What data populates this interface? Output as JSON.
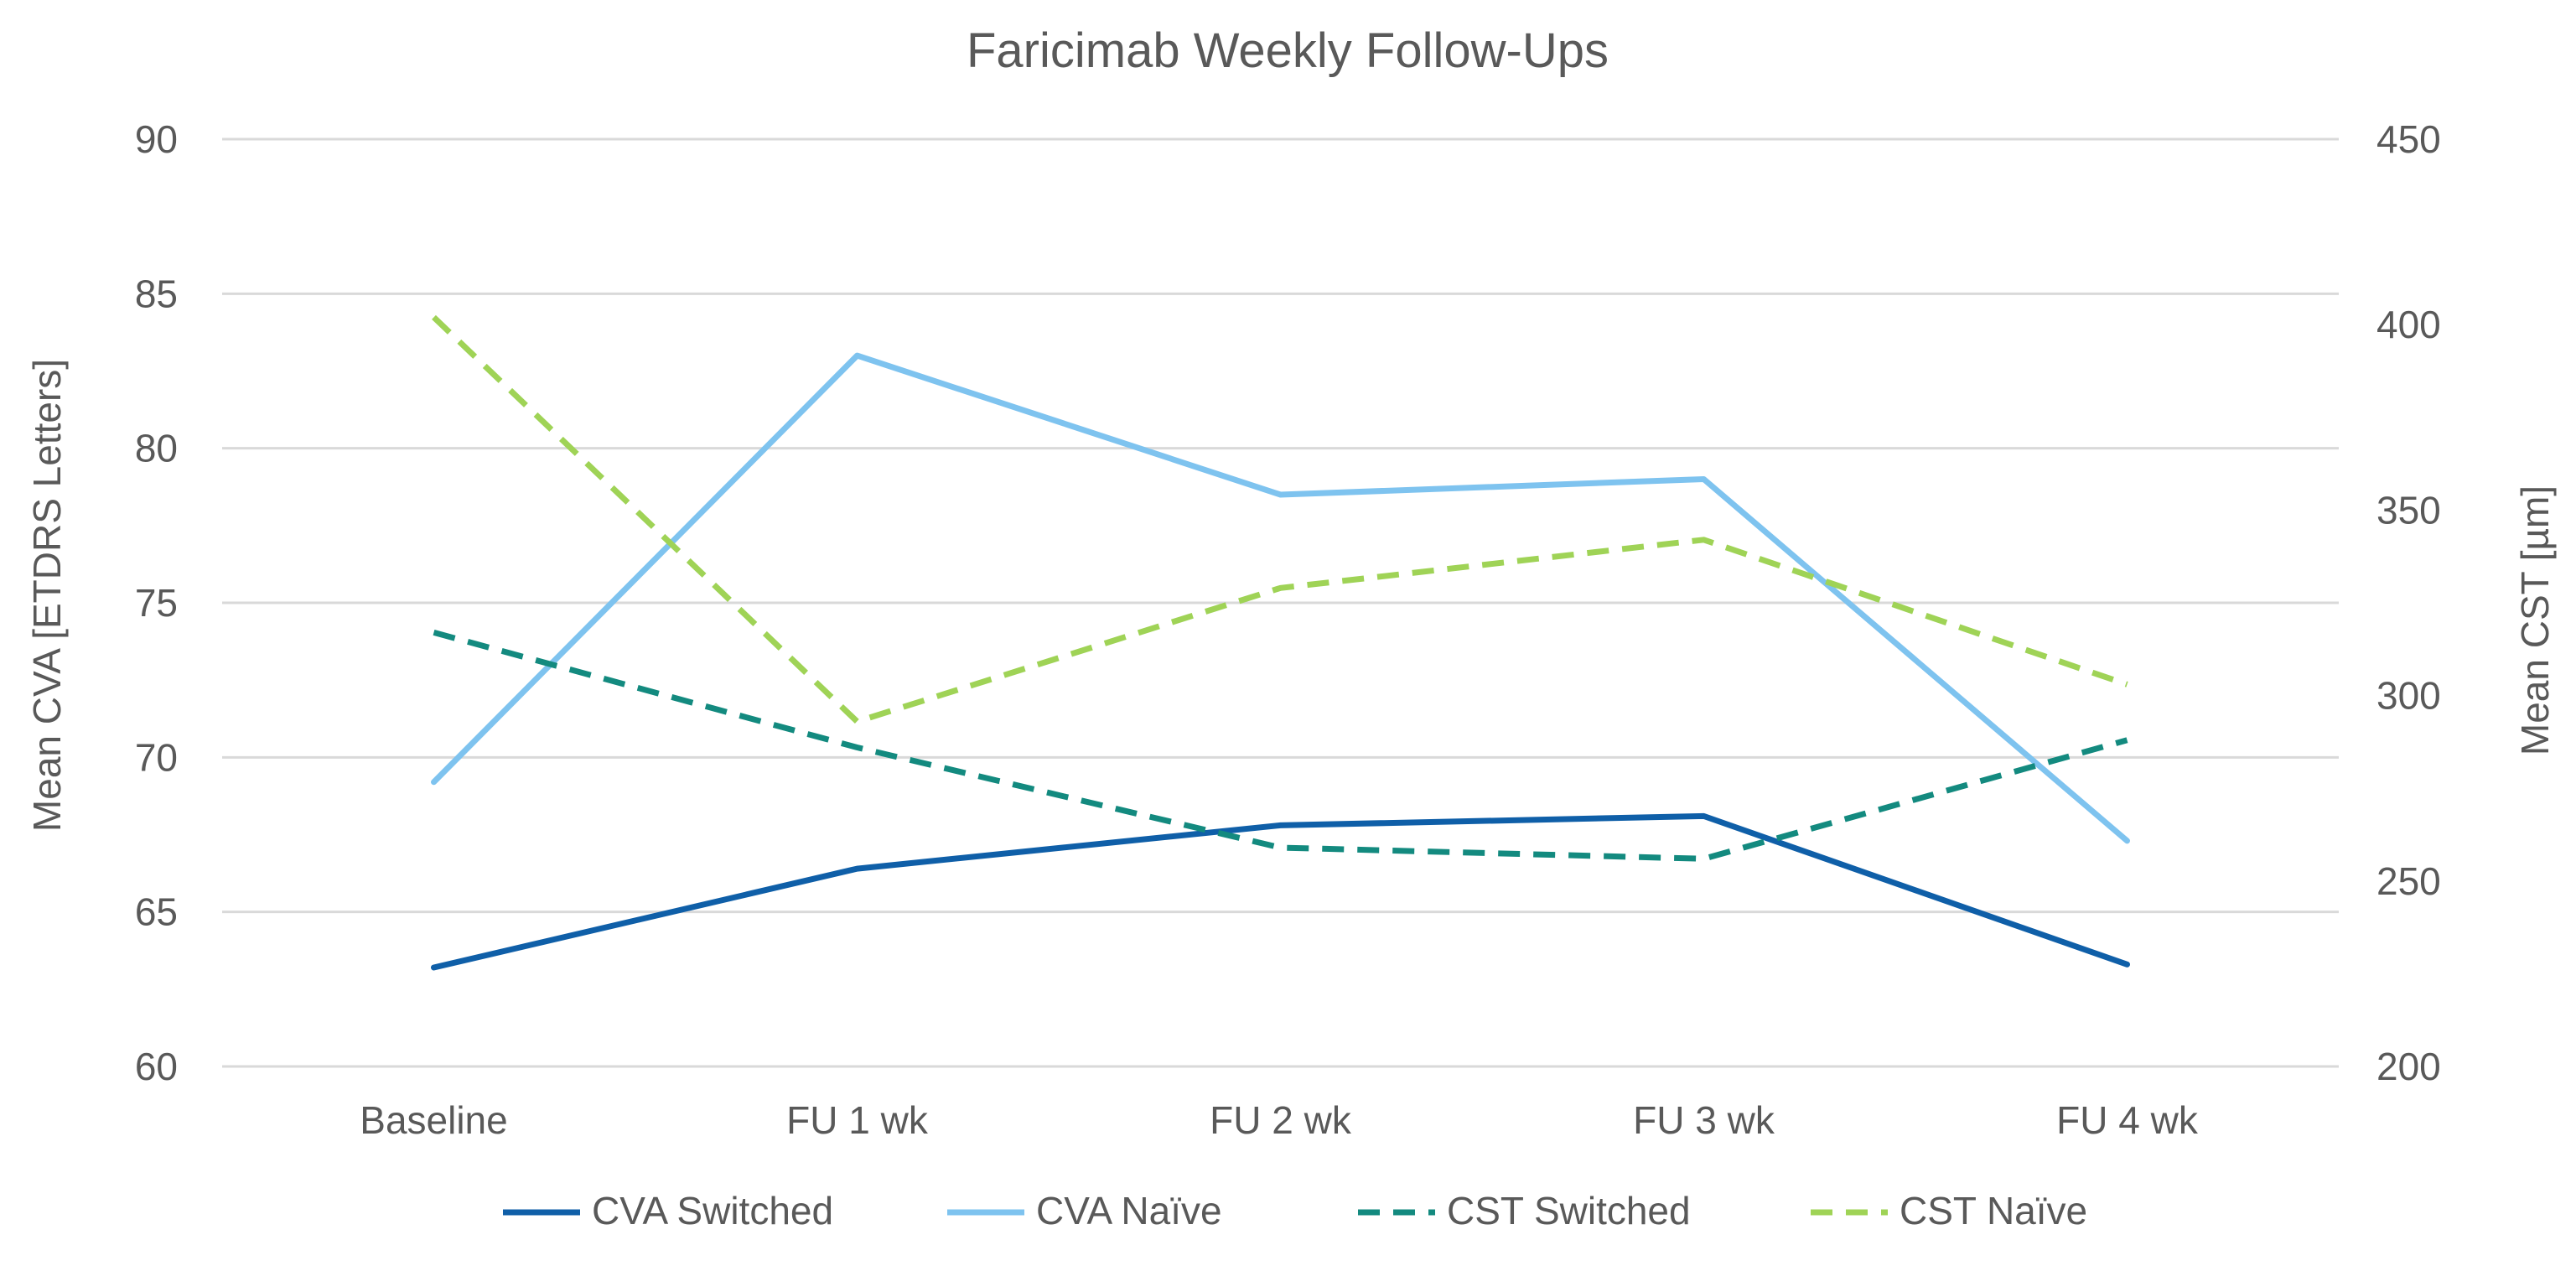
{
  "chart_data": {
    "type": "line",
    "title": "Faricimab Weekly Follow-Ups",
    "categories": [
      "Baseline",
      "FU 1 wk",
      "FU 2 wk",
      "FU 3 wk",
      "FU 4 wk"
    ],
    "ylabel_left": "Mean CVA [ETDRS Letters]",
    "ylabel_right": "Mean CST [µm]",
    "ylim_left": [
      60,
      90
    ],
    "ylim_right": [
      200,
      450
    ],
    "yticks_left": [
      "60",
      "65",
      "70",
      "75",
      "80",
      "85",
      "90"
    ],
    "yticks_right": [
      "200",
      "250",
      "300",
      "350",
      "400",
      "450"
    ],
    "grid": true,
    "legend_position": "bottom",
    "series": [
      {
        "name": "CVA Switched",
        "axis": "left",
        "values": [
          63.2,
          66.4,
          67.8,
          68.1,
          63.3
        ],
        "color": "#0f5fa8",
        "style": "solid"
      },
      {
        "name": "CVA Naïve",
        "axis": "left",
        "values": [
          69.2,
          83.0,
          78.5,
          79.0,
          67.3
        ],
        "color": "#7ec3ef",
        "style": "solid"
      },
      {
        "name": "CST Switched",
        "axis": "right",
        "values": [
          317,
          286,
          259,
          256,
          288
        ],
        "color": "#138a7f",
        "style": "dashed"
      },
      {
        "name": "CST Naïve",
        "axis": "right",
        "values": [
          402,
          293,
          329,
          342,
          303
        ],
        "color": "#9fd356",
        "style": "dashed"
      }
    ]
  }
}
